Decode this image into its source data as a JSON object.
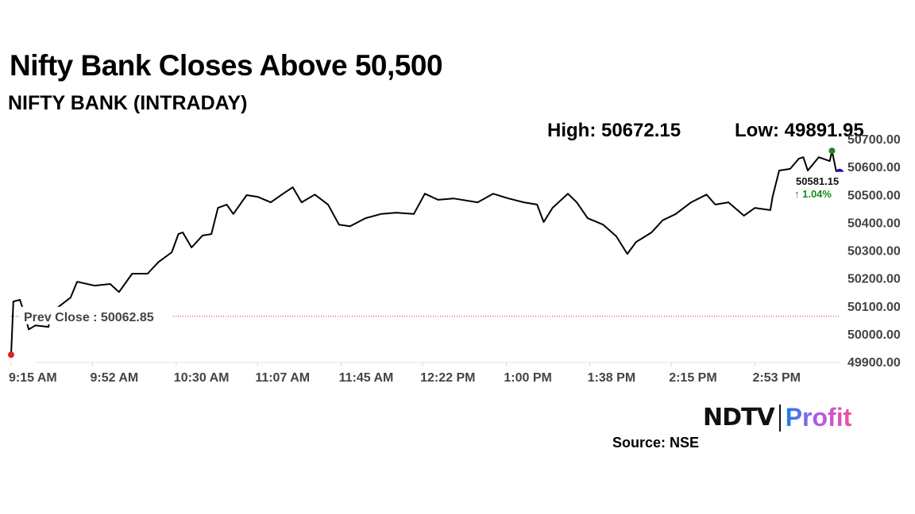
{
  "title": "Nifty Bank Closes Above 50,500",
  "subtitle": "NIFTY BANK (INTRADAY)",
  "high_label": "High: 50672.15",
  "low_label": "Low: 49891.95",
  "source": "Source: NSE",
  "logo": {
    "left": "NDTV",
    "right": "Profit"
  },
  "chart_data": {
    "type": "line",
    "title": "NIFTY BANK (INTRADAY)",
    "xlabel": "",
    "ylabel": "",
    "x_unit": "minutes since 9:15 AM",
    "xlim": [
      0,
      375
    ],
    "ylim": [
      49900,
      50700
    ],
    "y_ticks": [
      "50700.00",
      "50600.00",
      "50500.00",
      "50400.00",
      "50300.00",
      "50200.00",
      "50100.00",
      "50000.00",
      "49900.00"
    ],
    "y_tick_values": [
      50700,
      50600,
      50500,
      50400,
      50300,
      50200,
      50100,
      50000,
      49900
    ],
    "x_ticks": [
      "9:15 AM",
      "9:52 AM",
      "10:30 AM",
      "11:07 AM",
      "11:45 AM",
      "12:22 PM",
      "1:00 PM",
      "1:38 PM",
      "2:15 PM",
      "2:53 PM"
    ],
    "x_tick_values": [
      0,
      37,
      75,
      112,
      150,
      187,
      225,
      263,
      300,
      338
    ],
    "prev_close": {
      "label": "Prev Close : 50062.85",
      "value": 50062.85
    },
    "last": {
      "value_label": "50581.15",
      "change_label": "↑ 1.04%",
      "value": 50581.15
    },
    "colors": {
      "line": "#000000",
      "low_marker": "#e02020",
      "high_marker": "#1a8a1a",
      "last_marker": "#1a1aa0",
      "change": "#1a8a1a",
      "prev_close": "#b03030"
    },
    "x": [
      0,
      1,
      4,
      6,
      8,
      11,
      17,
      18,
      22,
      27,
      30,
      38,
      45,
      49,
      55,
      62,
      67,
      73,
      76,
      78,
      82,
      87,
      91,
      94,
      98,
      101,
      107,
      112,
      118,
      123,
      128,
      132,
      138,
      144,
      149,
      154,
      161,
      168,
      175,
      183,
      188,
      194,
      201,
      212,
      219,
      226,
      233,
      239,
      242,
      246,
      253,
      257,
      262,
      269,
      275,
      280,
      284,
      287,
      291,
      296,
      302,
      309,
      316,
      320,
      326,
      333,
      338,
      345,
      346,
      349,
      354,
      358,
      360,
      362,
      367,
      372,
      373,
      375
    ],
    "y": [
      49925,
      50116,
      50122,
      50074,
      50016,
      50030,
      50025,
      50073,
      50100,
      50130,
      50187,
      50173,
      50179,
      50150,
      50216,
      50216,
      50258,
      50293,
      50358,
      50364,
      50310,
      50353,
      50358,
      50452,
      50464,
      50430,
      50498,
      50492,
      50472,
      50500,
      50526,
      50472,
      50500,
      50464,
      50392,
      50386,
      50415,
      50430,
      50435,
      50430,
      50503,
      50481,
      50486,
      50472,
      50503,
      50486,
      50472,
      50464,
      50401,
      50452,
      50503,
      50472,
      50415,
      50392,
      50350,
      50287,
      50330,
      50344,
      50364,
      50407,
      50430,
      50472,
      50500,
      50464,
      50472,
      50424,
      50452,
      50444,
      50492,
      50586,
      50592,
      50629,
      50634,
      50586,
      50634,
      50620,
      50657,
      50581
    ]
  }
}
